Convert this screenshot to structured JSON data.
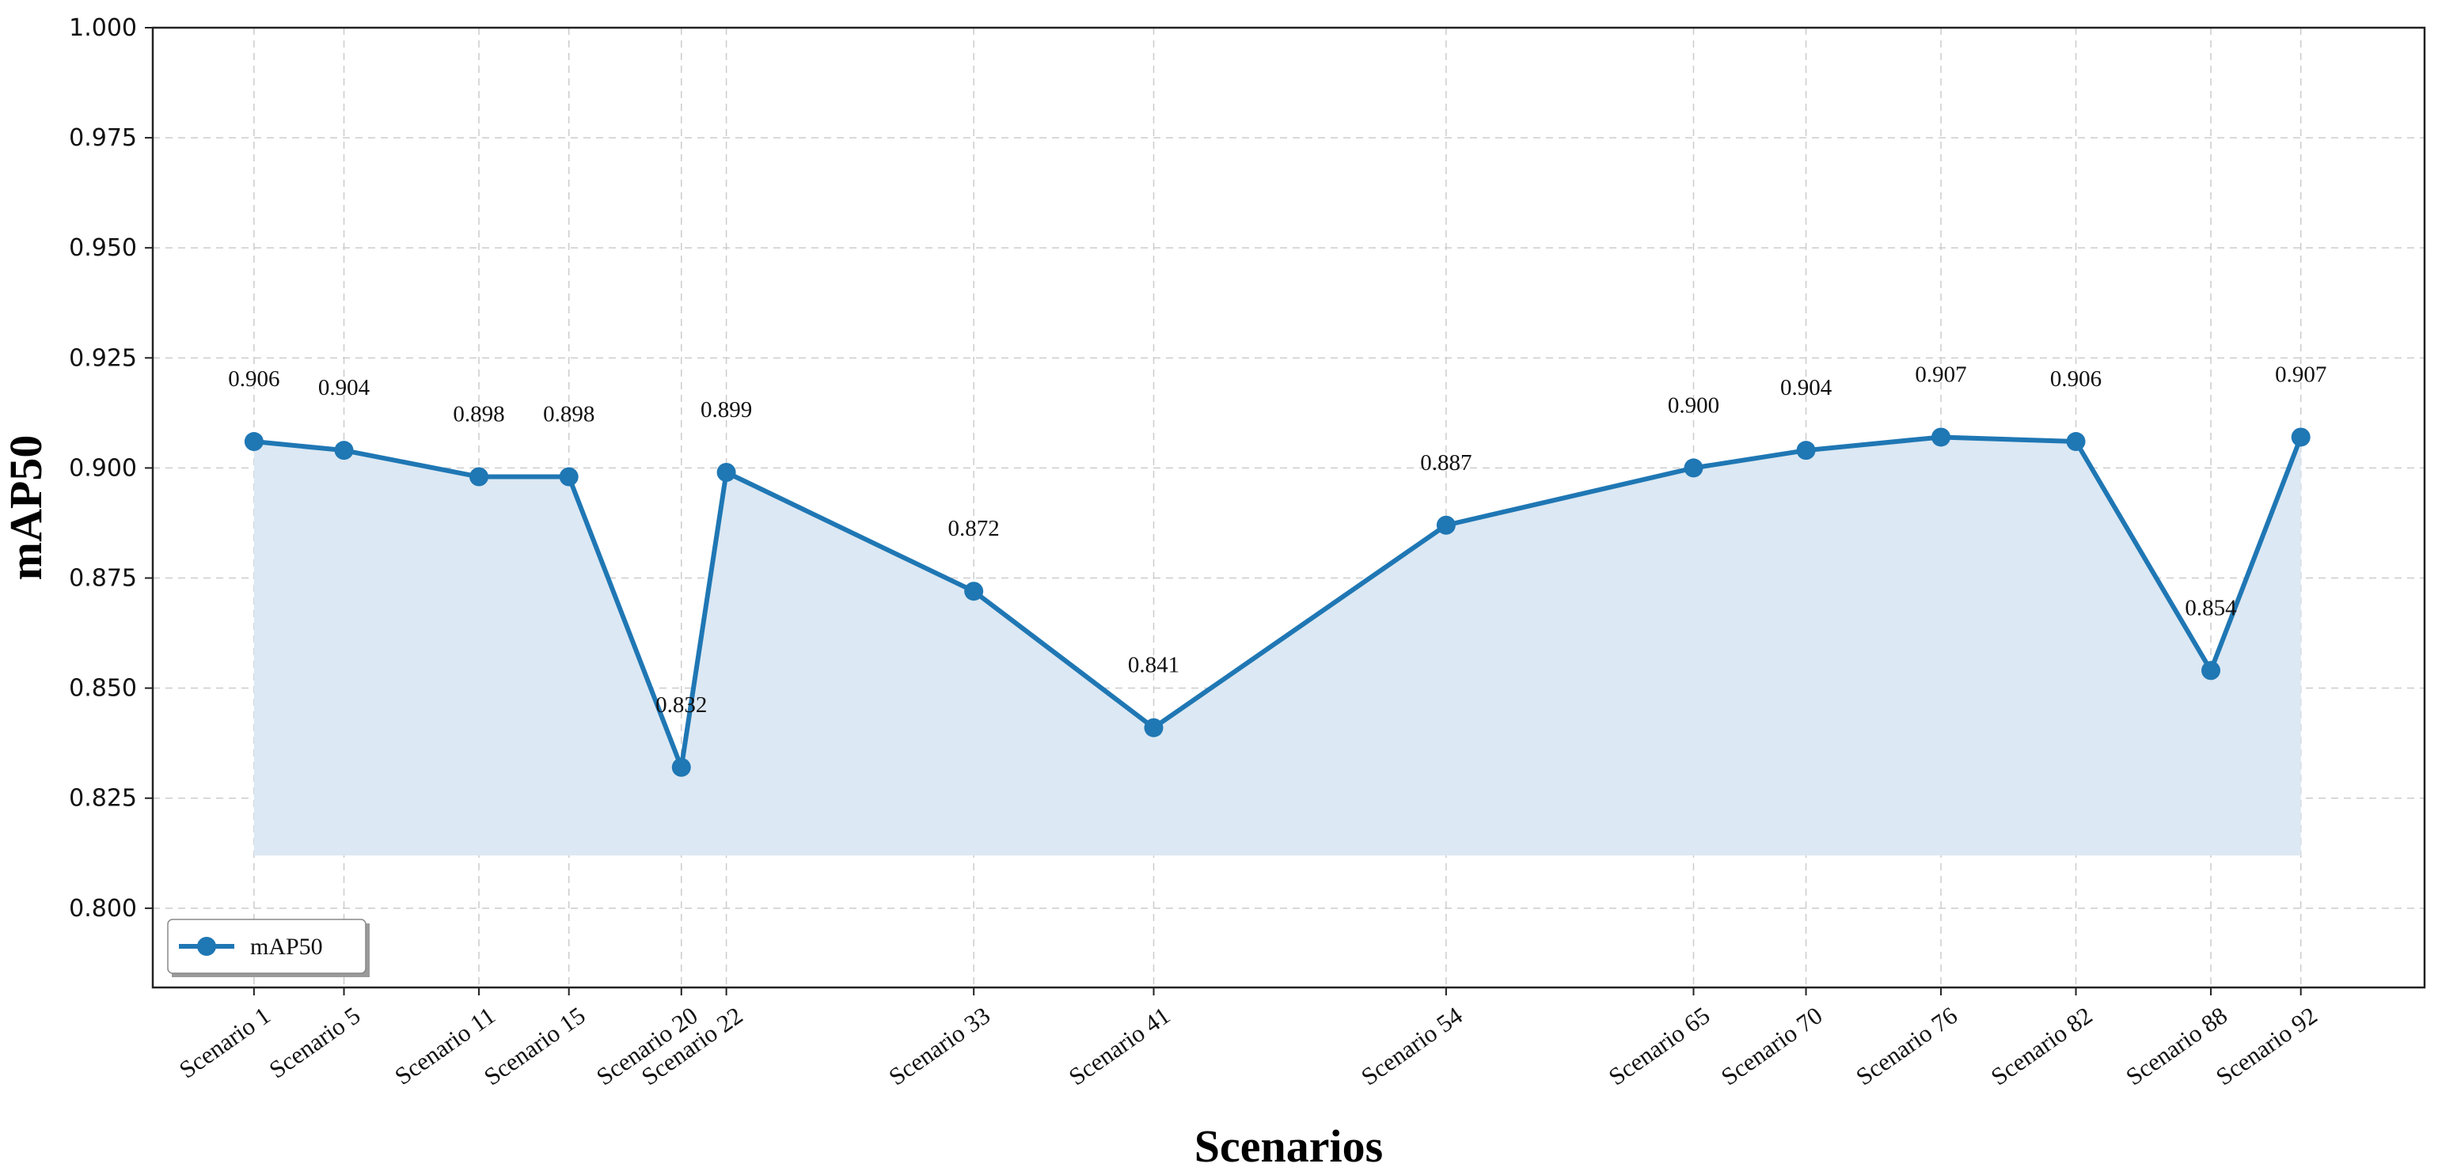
{
  "chart_data": {
    "type": "area",
    "title": "",
    "xlabel": "Scenarios",
    "ylabel": "mAP50",
    "categories": [
      "Scenario 1",
      "Scenario 5",
      "Scenario 11",
      "Scenario 15",
      "Scenario 20",
      "Scenario 22",
      "Scenario 33",
      "Scenario 41",
      "Scenario 54",
      "Scenario 65",
      "Scenario 70",
      "Scenario 76",
      "Scenario 82",
      "Scenario 88",
      "Scenario 92"
    ],
    "x": [
      1,
      5,
      11,
      15,
      20,
      22,
      33,
      41,
      54,
      65,
      70,
      76,
      82,
      88,
      92
    ],
    "series": [
      {
        "name": "mAP50",
        "values": [
          0.906,
          0.904,
          0.898,
          0.898,
          0.832,
          0.899,
          0.872,
          0.841,
          0.887,
          0.9,
          0.904,
          0.907,
          0.906,
          0.854,
          0.907
        ],
        "labels": [
          "0.906",
          "0.904",
          "0.898",
          "0.898",
          "0.832",
          "0.899",
          "0.872",
          "0.841",
          "0.887",
          "0.900",
          "0.904",
          "0.907",
          "0.906",
          "0.854",
          "0.907"
        ],
        "color": "#1f77b4"
      }
    ],
    "fill_baseline": 0.812,
    "fill_color": "#dce8f3",
    "xlim": [
      -3.5,
      97.5
    ],
    "ylim": [
      0.782,
      1.0
    ],
    "yticks": [
      0.8,
      0.825,
      0.85,
      0.875,
      0.9,
      0.925,
      0.95,
      0.975,
      1.0
    ],
    "ytick_labels": [
      "0.800",
      "0.825",
      "0.850",
      "0.875",
      "0.900",
      "0.925",
      "0.950",
      "0.975",
      "1.000"
    ],
    "grid": true,
    "legend_position": "bottom-left"
  }
}
